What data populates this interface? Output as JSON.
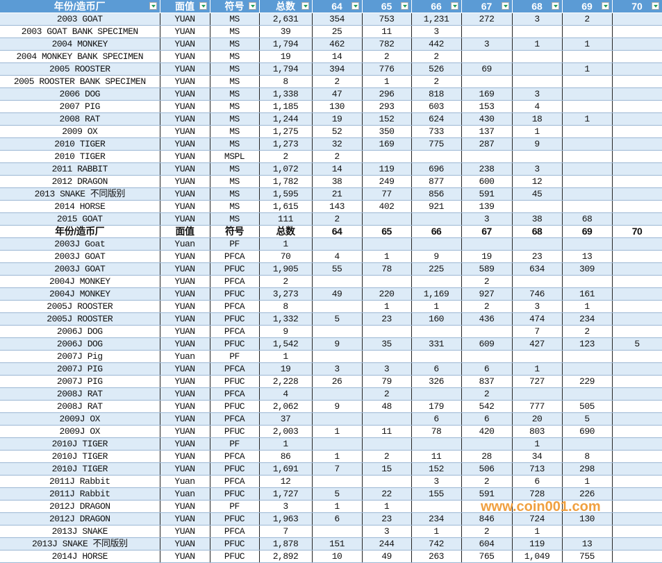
{
  "header": [
    "年份/造币厂",
    "面值",
    "符号",
    "总数",
    "64",
    "65",
    "66",
    "67",
    "68",
    "69",
    "70"
  ],
  "rows": [
    {
      "type": "data",
      "cells": [
        "2003 GOAT",
        "YUAN",
        "MS",
        "2,631",
        "354",
        "753",
        "1,231",
        "272",
        "3",
        "2",
        ""
      ]
    },
    {
      "type": "data",
      "cells": [
        "2003 GOAT BANK SPECIMEN",
        "YUAN",
        "MS",
        "39",
        "25",
        "11",
        "3",
        "",
        "",
        "",
        ""
      ]
    },
    {
      "type": "data",
      "cells": [
        "2004 MONKEY",
        "YUAN",
        "MS",
        "1,794",
        "462",
        "782",
        "442",
        "3",
        "1",
        "1",
        ""
      ]
    },
    {
      "type": "data",
      "cells": [
        "2004 MONKEY BANK SPECIMEN",
        "YUAN",
        "MS",
        "19",
        "14",
        "2",
        "2",
        "",
        "",
        "",
        ""
      ]
    },
    {
      "type": "data",
      "cells": [
        "2005 ROOSTER",
        "YUAN",
        "MS",
        "1,794",
        "394",
        "776",
        "526",
        "69",
        "",
        "1",
        ""
      ]
    },
    {
      "type": "data",
      "cells": [
        "2005 ROOSTER BANK SPECIMEN",
        "YUAN",
        "MS",
        "8",
        "2",
        "1",
        "2",
        "",
        "",
        "",
        ""
      ]
    },
    {
      "type": "data",
      "cells": [
        "2006 DOG",
        "YUAN",
        "MS",
        "1,338",
        "47",
        "296",
        "818",
        "169",
        "3",
        "",
        ""
      ]
    },
    {
      "type": "data",
      "cells": [
        "2007 PIG",
        "YUAN",
        "MS",
        "1,185",
        "130",
        "293",
        "603",
        "153",
        "4",
        "",
        ""
      ]
    },
    {
      "type": "data",
      "cells": [
        "2008 RAT",
        "YUAN",
        "MS",
        "1,244",
        "19",
        "152",
        "624",
        "430",
        "18",
        "1",
        ""
      ]
    },
    {
      "type": "data",
      "cells": [
        "2009 OX",
        "YUAN",
        "MS",
        "1,275",
        "52",
        "350",
        "733",
        "137",
        "1",
        "",
        ""
      ]
    },
    {
      "type": "data",
      "cells": [
        "2010 TIGER",
        "YUAN",
        "MS",
        "1,273",
        "32",
        "169",
        "775",
        "287",
        "9",
        "",
        ""
      ]
    },
    {
      "type": "data",
      "cells": [
        "2010 TIGER",
        "YUAN",
        "MSPL",
        "2",
        "2",
        "",
        "",
        "",
        "",
        "",
        ""
      ]
    },
    {
      "type": "data",
      "cells": [
        "2011 RABBIT",
        "YUAN",
        "MS",
        "1,072",
        "14",
        "119",
        "696",
        "238",
        "3",
        "",
        ""
      ]
    },
    {
      "type": "data",
      "cells": [
        "2012 DRAGON",
        "YUAN",
        "MS",
        "1,782",
        "38",
        "249",
        "877",
        "600",
        "12",
        "",
        ""
      ]
    },
    {
      "type": "data",
      "cells": [
        "2013 SNAKE 不同版别",
        "YUAN",
        "MS",
        "1,595",
        "21",
        "77",
        "856",
        "591",
        "45",
        "",
        ""
      ]
    },
    {
      "type": "data",
      "cells": [
        "2014 HORSE",
        "YUAN",
        "MS",
        "1,615",
        "143",
        "402",
        "921",
        "139",
        "",
        "",
        ""
      ]
    },
    {
      "type": "data",
      "cells": [
        "2015 GOAT",
        "YUAN",
        "MS",
        "111",
        "2",
        "",
        "",
        "3",
        "38",
        "68",
        ""
      ]
    },
    {
      "type": "subhead",
      "cells": [
        "年份/造币厂",
        "面值",
        "符号",
        "总数",
        "64",
        "65",
        "66",
        "67",
        "68",
        "69",
        "70"
      ]
    },
    {
      "type": "data",
      "cells": [
        "2003J Goat",
        "Yuan",
        "PF",
        "1",
        "",
        "",
        "",
        "",
        "",
        "",
        ""
      ]
    },
    {
      "type": "data",
      "cells": [
        "2003J GOAT",
        "YUAN",
        "PFCA",
        "70",
        "4",
        "1",
        "9",
        "19",
        "23",
        "13",
        ""
      ]
    },
    {
      "type": "data",
      "cells": [
        "2003J GOAT",
        "YUAN",
        "PFUC",
        "1,905",
        "55",
        "78",
        "225",
        "589",
        "634",
        "309",
        ""
      ]
    },
    {
      "type": "data",
      "cells": [
        "2004J MONKEY",
        "YUAN",
        "PFCA",
        "2",
        "",
        "",
        "",
        "2",
        "",
        "",
        ""
      ]
    },
    {
      "type": "data",
      "cells": [
        "2004J MONKEY",
        "YUAN",
        "PFUC",
        "3,273",
        "49",
        "220",
        "1,169",
        "927",
        "746",
        "161",
        ""
      ]
    },
    {
      "type": "data",
      "cells": [
        "2005J ROOSTER",
        "YUAN",
        "PFCA",
        "8",
        "",
        "1",
        "1",
        "2",
        "3",
        "1",
        ""
      ]
    },
    {
      "type": "data",
      "cells": [
        "2005J ROOSTER",
        "YUAN",
        "PFUC",
        "1,332",
        "5",
        "23",
        "160",
        "436",
        "474",
        "234",
        ""
      ]
    },
    {
      "type": "data",
      "cells": [
        "2006J DOG",
        "YUAN",
        "PFCA",
        "9",
        "",
        "",
        "",
        "",
        "7",
        "2",
        ""
      ]
    },
    {
      "type": "data",
      "cells": [
        "2006J DOG",
        "YUAN",
        "PFUC",
        "1,542",
        "9",
        "35",
        "331",
        "609",
        "427",
        "123",
        "5"
      ]
    },
    {
      "type": "data",
      "cells": [
        "2007J Pig",
        "Yuan",
        "PF",
        "1",
        "",
        "",
        "",
        "",
        "",
        "",
        ""
      ]
    },
    {
      "type": "data",
      "cells": [
        "2007J PIG",
        "YUAN",
        "PFCA",
        "19",
        "3",
        "3",
        "6",
        "6",
        "1",
        "",
        ""
      ]
    },
    {
      "type": "data",
      "cells": [
        "2007J PIG",
        "YUAN",
        "PFUC",
        "2,228",
        "26",
        "79",
        "326",
        "837",
        "727",
        "229",
        ""
      ]
    },
    {
      "type": "data",
      "cells": [
        "2008J RAT",
        "YUAN",
        "PFCA",
        "4",
        "",
        "2",
        "",
        "2",
        "",
        "",
        ""
      ]
    },
    {
      "type": "data",
      "cells": [
        "2008J RAT",
        "YUAN",
        "PFUC",
        "2,062",
        "9",
        "48",
        "179",
        "542",
        "777",
        "505",
        ""
      ]
    },
    {
      "type": "data",
      "cells": [
        "2009J OX",
        "YUAN",
        "PFCA",
        "37",
        "",
        "",
        "6",
        "6",
        "20",
        "5",
        ""
      ]
    },
    {
      "type": "data",
      "cells": [
        "2009J OX",
        "YUAN",
        "PFUC",
        "2,003",
        "1",
        "11",
        "78",
        "420",
        "803",
        "690",
        ""
      ]
    },
    {
      "type": "data",
      "cells": [
        "2010J TIGER",
        "YUAN",
        "PF",
        "1",
        "",
        "",
        "",
        "",
        "1",
        "",
        ""
      ]
    },
    {
      "type": "data",
      "cells": [
        "2010J TIGER",
        "YUAN",
        "PFCA",
        "86",
        "1",
        "2",
        "11",
        "28",
        "34",
        "8",
        ""
      ]
    },
    {
      "type": "data",
      "cells": [
        "2010J TIGER",
        "YUAN",
        "PFUC",
        "1,691",
        "7",
        "15",
        "152",
        "506",
        "713",
        "298",
        ""
      ]
    },
    {
      "type": "data",
      "cells": [
        "2011J Rabbit",
        "Yuan",
        "PFCA",
        "12",
        "",
        "",
        "3",
        "2",
        "6",
        "1",
        ""
      ]
    },
    {
      "type": "data",
      "cells": [
        "2011J Rabbit",
        "Yuan",
        "PFUC",
        "1,727",
        "5",
        "22",
        "155",
        "591",
        "728",
        "226",
        ""
      ]
    },
    {
      "type": "data",
      "cells": [
        "2012J DRAGON",
        "YUAN",
        "PF",
        "3",
        "1",
        "1",
        "",
        "",
        "",
        "",
        ""
      ]
    },
    {
      "type": "data",
      "cells": [
        "2012J DRAGON",
        "YUAN",
        "PFUC",
        "1,963",
        "6",
        "23",
        "234",
        "846",
        "724",
        "130",
        ""
      ]
    },
    {
      "type": "data",
      "cells": [
        "2013J SNAKE",
        "YUAN",
        "PFCA",
        "7",
        "",
        "3",
        "1",
        "2",
        "1",
        "",
        ""
      ]
    },
    {
      "type": "data",
      "cells": [
        "2013J SNAKE 不同版别",
        "YUAN",
        "PFUC",
        "1,878",
        "151",
        "244",
        "742",
        "604",
        "119",
        "13",
        ""
      ]
    },
    {
      "type": "data",
      "cells": [
        "2014J HORSE",
        "YUAN",
        "PFUC",
        "2,892",
        "10",
        "49",
        "263",
        "765",
        "1,049",
        "755",
        ""
      ]
    }
  ],
  "watermark": "www.coin001.com",
  "colors": {
    "header_bg": "#5b9bd5",
    "stripe": "#ddebf7",
    "filter_arrow": "#22a05a",
    "watermark": "#f0a040"
  }
}
